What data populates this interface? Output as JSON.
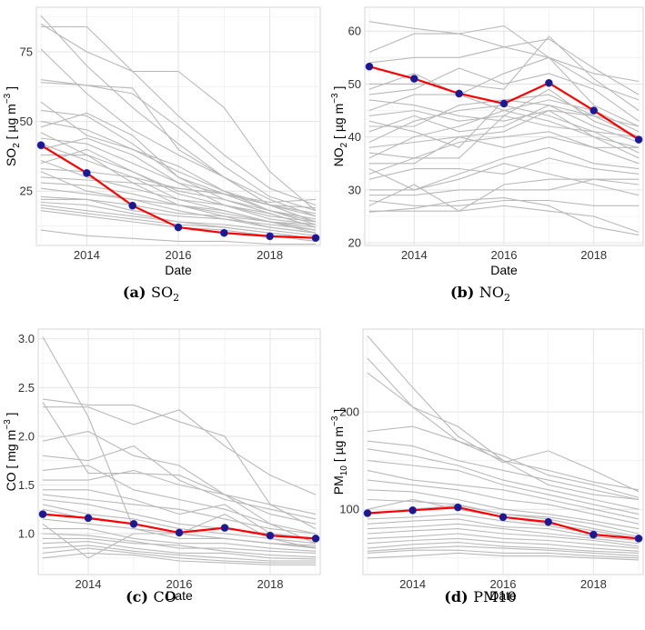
{
  "chart_data": [
    {
      "type": "line",
      "title": "SO2",
      "caption": {
        "letter": "(a)",
        "label": "SO",
        "sub": "2"
      },
      "xlabel": "Date",
      "ylabel": {
        "pre": "SO",
        "sub": "2",
        "mid": " [ µg m",
        "sup": "−3",
        "post": " ]"
      },
      "xlim": [
        2012.9,
        2019.1
      ],
      "ylim": [
        5.5,
        91
      ],
      "xticks": [
        2014,
        2016,
        2018
      ],
      "yticks": [
        25,
        50,
        75
      ],
      "x": [
        2013,
        2014,
        2015,
        2016,
        2017,
        2018,
        2019
      ],
      "mean": [
        41.5,
        31.5,
        19.8,
        12.0,
        10.0,
        8.8,
        8.2
      ],
      "stations": [
        [
          88,
          70,
          55,
          42,
          30,
          20,
          14
        ],
        [
          85,
          75,
          68,
          52,
          38,
          26,
          20
        ],
        [
          84,
          84,
          68,
          68,
          55,
          32,
          18
        ],
        [
          76,
          60,
          47,
          38,
          30,
          22,
          16
        ],
        [
          65,
          63,
          60,
          48,
          34,
          23,
          18
        ],
        [
          64,
          63,
          62,
          40,
          30,
          20,
          14
        ],
        [
          57,
          45,
          40,
          34,
          25,
          18,
          13
        ],
        [
          54,
          52,
          42,
          30,
          24,
          18,
          14
        ],
        [
          50,
          47,
          40,
          32,
          25,
          20,
          16
        ],
        [
          48,
          53,
          45,
          30,
          22,
          17,
          12
        ],
        [
          46,
          38,
          32,
          25,
          22,
          18,
          15
        ],
        [
          44,
          42,
          35,
          28,
          24,
          20,
          17
        ],
        [
          42,
          36,
          30,
          22,
          20,
          17,
          12
        ],
        [
          40,
          44,
          38,
          28,
          20,
          16,
          14
        ],
        [
          38,
          38,
          28,
          20,
          18,
          14,
          10
        ],
        [
          36,
          30,
          26,
          22,
          18,
          14,
          11
        ],
        [
          35,
          40,
          32,
          24,
          20,
          15,
          13
        ],
        [
          33,
          32,
          30,
          26,
          24,
          21,
          22
        ],
        [
          32,
          25,
          22,
          20,
          17,
          14,
          12
        ],
        [
          30,
          29,
          28,
          26,
          24,
          20,
          19
        ],
        [
          28,
          27,
          24,
          20,
          16,
          12,
          10
        ],
        [
          26,
          24,
          22,
          18,
          15,
          12,
          10
        ],
        [
          23,
          22,
          20,
          17,
          16,
          14,
          13
        ],
        [
          22,
          22,
          18,
          16,
          15,
          13,
          11
        ],
        [
          21,
          20,
          17,
          14,
          12,
          10,
          8
        ],
        [
          20,
          18,
          16,
          14,
          13,
          11,
          9
        ],
        [
          19,
          17,
          15,
          13,
          12,
          10,
          8
        ],
        [
          18,
          16,
          14,
          12,
          11,
          9,
          7
        ],
        [
          11,
          9,
          8,
          7,
          7,
          6,
          6
        ]
      ]
    },
    {
      "type": "line",
      "title": "NO2",
      "caption": {
        "letter": "(b)",
        "label": "NO",
        "sub": "2"
      },
      "xlabel": "Date",
      "ylabel": {
        "pre": "NO",
        "sub": "2",
        "mid": " [ µg m",
        "sup": "−3",
        "post": " ]"
      },
      "xlim": [
        2012.9,
        2019.1
      ],
      "ylim": [
        19.5,
        64.5
      ],
      "xticks": [
        2014,
        2016,
        2018
      ],
      "yticks": [
        20,
        30,
        40,
        50,
        60
      ],
      "x": [
        2013,
        2014,
        2015,
        2016,
        2017,
        2018,
        2019
      ],
      "mean": [
        53.3,
        51.0,
        48.2,
        46.3,
        50.2,
        45.0,
        39.5
      ],
      "stations": [
        [
          61.8,
          60.5,
          59.5,
          57.0,
          55.0,
          52.0,
          50.5
        ],
        [
          56.0,
          59.5,
          59.5,
          61.0,
          55.0,
          50.0,
          47.0
        ],
        [
          54.0,
          55.0,
          55.0,
          57.0,
          58.5,
          53.0,
          48.0
        ],
        [
          50.0,
          50.0,
          50.0,
          49.0,
          59.0,
          51.0,
          45.0
        ],
        [
          49.0,
          52.0,
          48.0,
          52.0,
          55.0,
          46.0,
          42.0
        ],
        [
          48.0,
          49.0,
          53.0,
          50.0,
          52.0,
          49.0,
          43.0
        ],
        [
          47.0,
          46.0,
          44.0,
          43.0,
          45.0,
          40.0,
          38.0
        ],
        [
          45.0,
          48.0,
          48.0,
          45.0,
          47.0,
          45.0,
          41.0
        ],
        [
          44.0,
          45.0,
          43.0,
          44.0,
          49.0,
          43.0,
          40.0
        ],
        [
          43.0,
          41.0,
          38.0,
          47.0,
          46.0,
          44.0,
          42.0
        ],
        [
          42.0,
          42.0,
          46.0,
          47.0,
          48.0,
          44.0,
          40.0
        ],
        [
          41.0,
          44.0,
          41.0,
          42.0,
          46.0,
          42.0,
          39.0
        ],
        [
          39.0,
          43.0,
          45.0,
          46.0,
          44.0,
          41.0,
          40.0
        ],
        [
          38.0,
          39.0,
          40.0,
          41.0,
          45.0,
          44.0,
          40.0
        ],
        [
          37.0,
          36.0,
          36.0,
          44.0,
          42.0,
          41.0,
          37.0
        ],
        [
          36.0,
          40.0,
          42.0,
          45.0,
          43.0,
          40.0,
          36.0
        ],
        [
          35.0,
          35.0,
          40.0,
          38.0,
          40.0,
          38.0,
          35.0
        ],
        [
          34.0,
          30.0,
          33.0,
          36.0,
          38.0,
          35.0,
          34.0
        ],
        [
          33.0,
          36.0,
          39.0,
          40.0,
          41.0,
          38.0,
          38.0
        ],
        [
          32.0,
          34.0,
          34.0,
          33.0,
          36.0,
          34.0,
          33.0
        ],
        [
          30.0,
          30.0,
          32.0,
          35.0,
          33.0,
          31.0,
          29.0
        ],
        [
          29.0,
          29.0,
          30.0,
          30.0,
          30.0,
          32.0,
          32.0
        ],
        [
          28.0,
          27.0,
          27.0,
          28.0,
          28.0,
          27.0,
          27.0
        ],
        [
          27.0,
          31.0,
          26.0,
          31.0,
          32.0,
          32.0,
          31.0
        ],
        [
          26.0,
          26.0,
          26.0,
          27.0,
          26.0,
          25.0,
          22.0
        ],
        [
          25.8,
          26.5,
          28.0,
          28.5,
          27.0,
          23.0,
          21.5
        ]
      ]
    },
    {
      "type": "line",
      "title": "CO",
      "caption": {
        "letter": "(c)",
        "label": "CO",
        "sub": ""
      },
      "xlabel": "Date",
      "ylabel": {
        "pre": "CO",
        "sub": "",
        "mid": " [ mg m",
        "sup": "−3",
        "post": " ]"
      },
      "xlim": [
        2012.9,
        2019.1
      ],
      "ylim": [
        0.58,
        3.1
      ],
      "xticks": [
        2014,
        2016,
        2018
      ],
      "yticks": [
        1.0,
        1.5,
        2.0,
        2.5,
        3.0
      ],
      "x": [
        2013,
        2014,
        2015,
        2016,
        2017,
        2018,
        2019
      ],
      "mean": [
        1.2,
        1.16,
        1.1,
        1.01,
        1.06,
        0.98,
        0.95
      ],
      "stations": [
        [
          3.02,
          2.2,
          1.05,
          1.0,
          0.95,
          0.9,
          0.85
        ],
        [
          2.38,
          2.32,
          2.32,
          2.15,
          2.0,
          1.3,
          1.05
        ],
        [
          2.35,
          1.62,
          1.62,
          1.6,
          1.4,
          1.1,
          0.9
        ],
        [
          2.3,
          2.3,
          2.12,
          2.27,
          1.9,
          1.6,
          1.4
        ],
        [
          1.95,
          2.05,
          1.8,
          1.7,
          1.4,
          1.3,
          1.2
        ],
        [
          1.8,
          1.75,
          1.9,
          1.55,
          1.35,
          1.25,
          1.15
        ],
        [
          1.65,
          1.7,
          1.45,
          1.35,
          1.25,
          1.1,
          1.0
        ],
        [
          1.55,
          1.55,
          1.65,
          1.5,
          1.4,
          1.2,
          1.1
        ],
        [
          1.45,
          1.45,
          1.35,
          1.2,
          1.3,
          1.0,
          0.95
        ],
        [
          1.4,
          1.35,
          1.3,
          1.25,
          1.15,
          1.05,
          1.0
        ],
        [
          1.35,
          1.3,
          1.2,
          1.1,
          1.05,
          1.0,
          0.95
        ],
        [
          1.3,
          1.2,
          1.15,
          1.05,
          1.0,
          0.95,
          0.9
        ],
        [
          1.25,
          1.15,
          1.1,
          1.0,
          0.95,
          0.9,
          0.88
        ],
        [
          1.15,
          1.1,
          1.05,
          0.95,
          0.95,
          0.9,
          0.86
        ],
        [
          1.1,
          0.75,
          1.0,
          1.0,
          1.2,
          0.95,
          0.85
        ],
        [
          1.05,
          1.05,
          0.95,
          0.9,
          0.9,
          0.85,
          0.82
        ],
        [
          1.0,
          0.98,
          0.92,
          0.85,
          0.85,
          0.82,
          0.8
        ],
        [
          0.95,
          0.95,
          0.9,
          0.88,
          0.82,
          0.78,
          0.76
        ],
        [
          0.9,
          0.92,
          0.85,
          0.8,
          0.8,
          0.75,
          0.74
        ],
        [
          0.85,
          0.88,
          0.82,
          0.78,
          0.75,
          0.72,
          0.72
        ],
        [
          0.8,
          0.85,
          0.8,
          0.75,
          0.72,
          0.7,
          0.7
        ],
        [
          0.75,
          0.8,
          0.78,
          0.72,
          0.7,
          0.68,
          0.68
        ]
      ]
    },
    {
      "type": "line",
      "title": "PM10",
      "caption": {
        "letter": "(d)",
        "label": "PM10",
        "sub": ""
      },
      "xlabel": "Date",
      "ylabel": {
        "pre": "PM",
        "sub": "10",
        "mid": " [ µg m",
        "sup": "−3",
        "post": " ]"
      },
      "xlim": [
        2012.9,
        2019.1
      ],
      "ylim": [
        33,
        285
      ],
      "xticks": [
        2014,
        2016,
        2018
      ],
      "yticks": [
        100,
        200
      ],
      "x": [
        2013,
        2014,
        2015,
        2016,
        2017,
        2018,
        2019
      ],
      "mean": [
        96,
        99,
        102,
        92,
        87,
        74,
        70
      ],
      "stations": [
        [
          278,
          225,
          175,
          148,
          160,
          140,
          118
        ],
        [
          255,
          205,
          185,
          150,
          125,
          115,
          110
        ],
        [
          240,
          205,
          170,
          155,
          135,
          125,
          112
        ],
        [
          180,
          185,
          170,
          150,
          140,
          128,
          120
        ],
        [
          170,
          165,
          150,
          140,
          130,
          120,
          110
        ],
        [
          162,
          155,
          145,
          130,
          120,
          110,
          100
        ],
        [
          150,
          145,
          140,
          125,
          115,
          105,
          95
        ],
        [
          140,
          130,
          125,
          120,
          110,
          100,
          90
        ],
        [
          130,
          125,
          120,
          110,
          105,
          95,
          85
        ],
        [
          120,
          118,
          110,
          100,
          95,
          88,
          80
        ],
        [
          110,
          108,
          105,
          95,
          92,
          85,
          75
        ],
        [
          100,
          110,
          100,
          92,
          85,
          78,
          70
        ],
        [
          95,
          100,
          104,
          95,
          90,
          80,
          72
        ],
        [
          90,
          92,
          95,
          88,
          83,
          75,
          70
        ],
        [
          85,
          88,
          90,
          82,
          80,
          72,
          68
        ],
        [
          80,
          82,
          85,
          80,
          75,
          70,
          65
        ],
        [
          75,
          78,
          80,
          75,
          72,
          68,
          62
        ],
        [
          70,
          72,
          75,
          70,
          68,
          64,
          60
        ],
        [
          65,
          68,
          70,
          66,
          64,
          60,
          57
        ],
        [
          60,
          64,
          66,
          62,
          60,
          57,
          55
        ],
        [
          57,
          60,
          62,
          60,
          58,
          55,
          52
        ],
        [
          55,
          58,
          58,
          55,
          55,
          52,
          50
        ],
        [
          50,
          52,
          55,
          52,
          52,
          50,
          48
        ]
      ]
    }
  ]
}
